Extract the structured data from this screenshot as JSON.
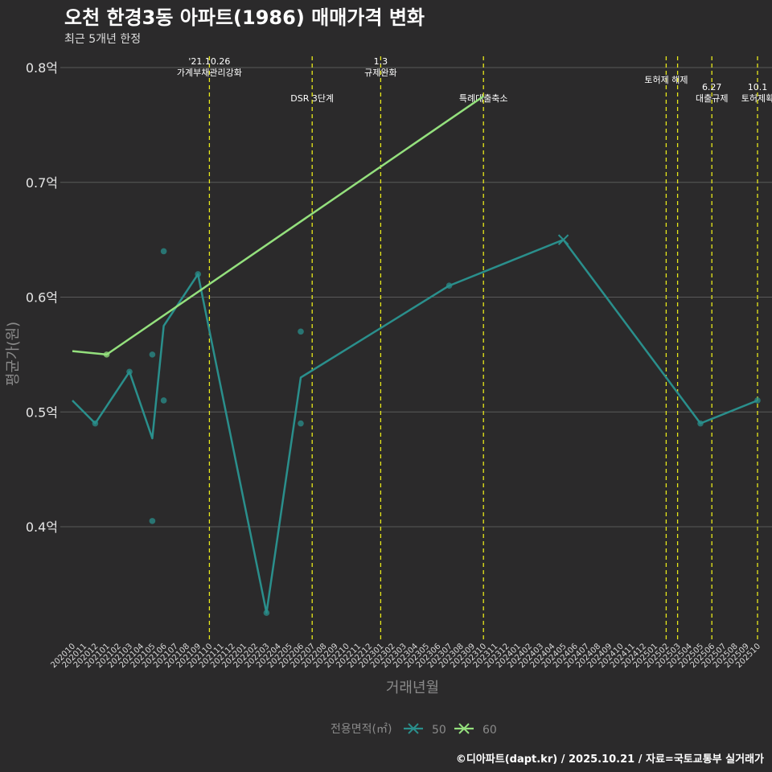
{
  "chart_data": {
    "type": "line",
    "title": "오천 한경3동 아파트(1986) 매매가격 변화",
    "subtitle": "최근 5개년 한정",
    "xlabel": "거래년월",
    "ylabel": "평균가(원)",
    "ylim": [
      0.3,
      0.81
    ],
    "yticks": [
      {
        "value": 0.4,
        "label": "0.4억"
      },
      {
        "value": 0.5,
        "label": "0.5억"
      },
      {
        "value": 0.6,
        "label": "0.6억"
      },
      {
        "value": 0.7,
        "label": "0.7억"
      },
      {
        "value": 0.8,
        "label": "0.8억"
      }
    ],
    "categories": [
      "202010",
      "202011",
      "202012",
      "202101",
      "202102",
      "202103",
      "202104",
      "202105",
      "202106",
      "202107",
      "202108",
      "202109",
      "202110",
      "202111",
      "202112",
      "202201",
      "202202",
      "202203",
      "202204",
      "202205",
      "202206",
      "202207",
      "202208",
      "202209",
      "202210",
      "202211",
      "202212",
      "202301",
      "202302",
      "202303",
      "202304",
      "202305",
      "202306",
      "202307",
      "202308",
      "202309",
      "202310",
      "202311",
      "202312",
      "202401",
      "202402",
      "202403",
      "202404",
      "202405",
      "202406",
      "202407",
      "202408",
      "202409",
      "202410",
      "202411",
      "202412",
      "202501",
      "202502",
      "202503",
      "202504",
      "202505",
      "202506",
      "202507",
      "202508",
      "202509",
      "202510"
    ],
    "series": [
      {
        "name": "50",
        "color": "#2a8f8c",
        "line": [
          {
            "x": "202010",
            "y": 0.51
          },
          {
            "x": "202012",
            "y": 0.49
          },
          {
            "x": "202103",
            "y": 0.535
          },
          {
            "x": "202105",
            "y": 0.477
          },
          {
            "x": "202106",
            "y": 0.575
          },
          {
            "x": "202109",
            "y": 0.62
          },
          {
            "x": "202203",
            "y": 0.325
          },
          {
            "x": "202206",
            "y": 0.53
          },
          {
            "x": "202307",
            "y": 0.61
          },
          {
            "x": "202405",
            "y": 0.65
          },
          {
            "x": "202505",
            "y": 0.49
          },
          {
            "x": "202510",
            "y": 0.51
          }
        ],
        "points": [
          {
            "x": "202012",
            "y": 0.49
          },
          {
            "x": "202103",
            "y": 0.535
          },
          {
            "x": "202105",
            "y": 0.55
          },
          {
            "x": "202105",
            "y": 0.405
          },
          {
            "x": "202106",
            "y": 0.64
          },
          {
            "x": "202106",
            "y": 0.51
          },
          {
            "x": "202109",
            "y": 0.62
          },
          {
            "x": "202203",
            "y": 0.325
          },
          {
            "x": "202206",
            "y": 0.57
          },
          {
            "x": "202206",
            "y": 0.49
          },
          {
            "x": "202307",
            "y": 0.61
          },
          {
            "x": "202505",
            "y": 0.49
          },
          {
            "x": "202510",
            "y": 0.51
          }
        ],
        "markers_x": [
          {
            "x": "202405",
            "y": 0.65
          }
        ]
      },
      {
        "name": "60",
        "color": "#94e07d",
        "line": [
          {
            "x": "202010",
            "y": 0.553
          },
          {
            "x": "202101",
            "y": 0.55
          },
          {
            "x": "202310",
            "y": 0.775
          }
        ],
        "points": [
          {
            "x": "202101",
            "y": 0.55
          }
        ],
        "markers_x": []
      }
    ],
    "events": [
      {
        "x": "202110",
        "lines": [
          "'21.10.26",
          "가계부채관리강화"
        ],
        "row": 1
      },
      {
        "x": "202207",
        "lines": [
          "DSR 3단계"
        ],
        "row": 3
      },
      {
        "x": "202301",
        "lines": [
          "1.3",
          "규제완화"
        ],
        "row": 1
      },
      {
        "x": "202310",
        "lines": [
          "특례대출축소"
        ],
        "row": 3
      },
      {
        "x": "202502",
        "lines": [
          "토허제 해제"
        ],
        "row": 2
      },
      {
        "x": "202503",
        "lines": [],
        "row": 2
      },
      {
        "x": "202506",
        "lines": [
          "6.27",
          "대출규제"
        ],
        "row": 3
      },
      {
        "x": "202510",
        "lines": [
          "10.1",
          "토허제확"
        ],
        "row": 3
      }
    ],
    "legend": {
      "title": "전용면적(㎡)",
      "position": "bottom",
      "items": [
        "50",
        "60"
      ]
    },
    "grid": true
  },
  "caption": "©디아파트(dapt.kr) / 2025.10.21 / 자료=국토교통부 실거래가",
  "colors": {
    "background": "#2b2a2b",
    "grid": "#5a5a5a",
    "event_line": "#e8e81a"
  }
}
